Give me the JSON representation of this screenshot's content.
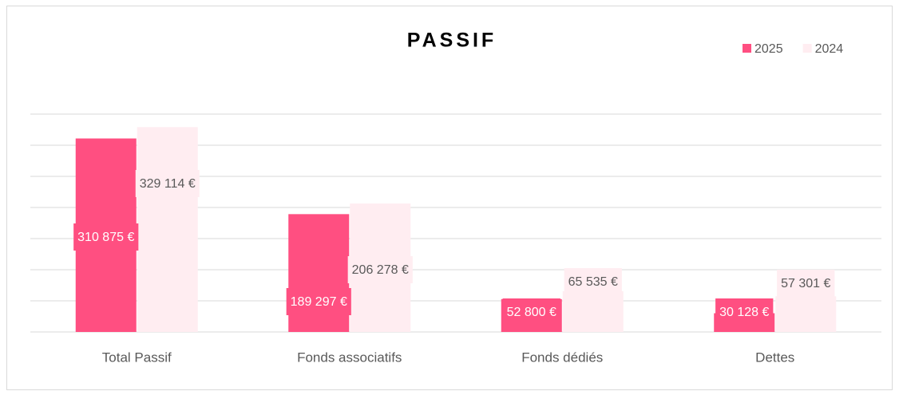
{
  "chart_data": {
    "type": "bar",
    "title": "PASSIF",
    "categories": [
      "Total Passif",
      "Fonds associatifs",
      "Fonds dédiés",
      "Dettes"
    ],
    "series": [
      {
        "name": "2025",
        "color": "#ff4f81",
        "values": [
          310875,
          189297,
          52800,
          30128
        ],
        "value_labels": [
          "310 875 €",
          "189 297 €",
          "52 800 €",
          "30 128 €"
        ]
      },
      {
        "name": "2024",
        "color": "#ffedf1",
        "values": [
          329114,
          206278,
          65535,
          57301
        ],
        "value_labels": [
          "329 114 €",
          "206 278 €",
          "65 535 €",
          "57 301 €"
        ]
      }
    ],
    "ylim": [
      0,
      350000
    ],
    "yticks": [
      0,
      50000,
      100000,
      150000,
      200000,
      250000,
      300000,
      350000
    ],
    "grid": true,
    "legend": "top-right"
  }
}
